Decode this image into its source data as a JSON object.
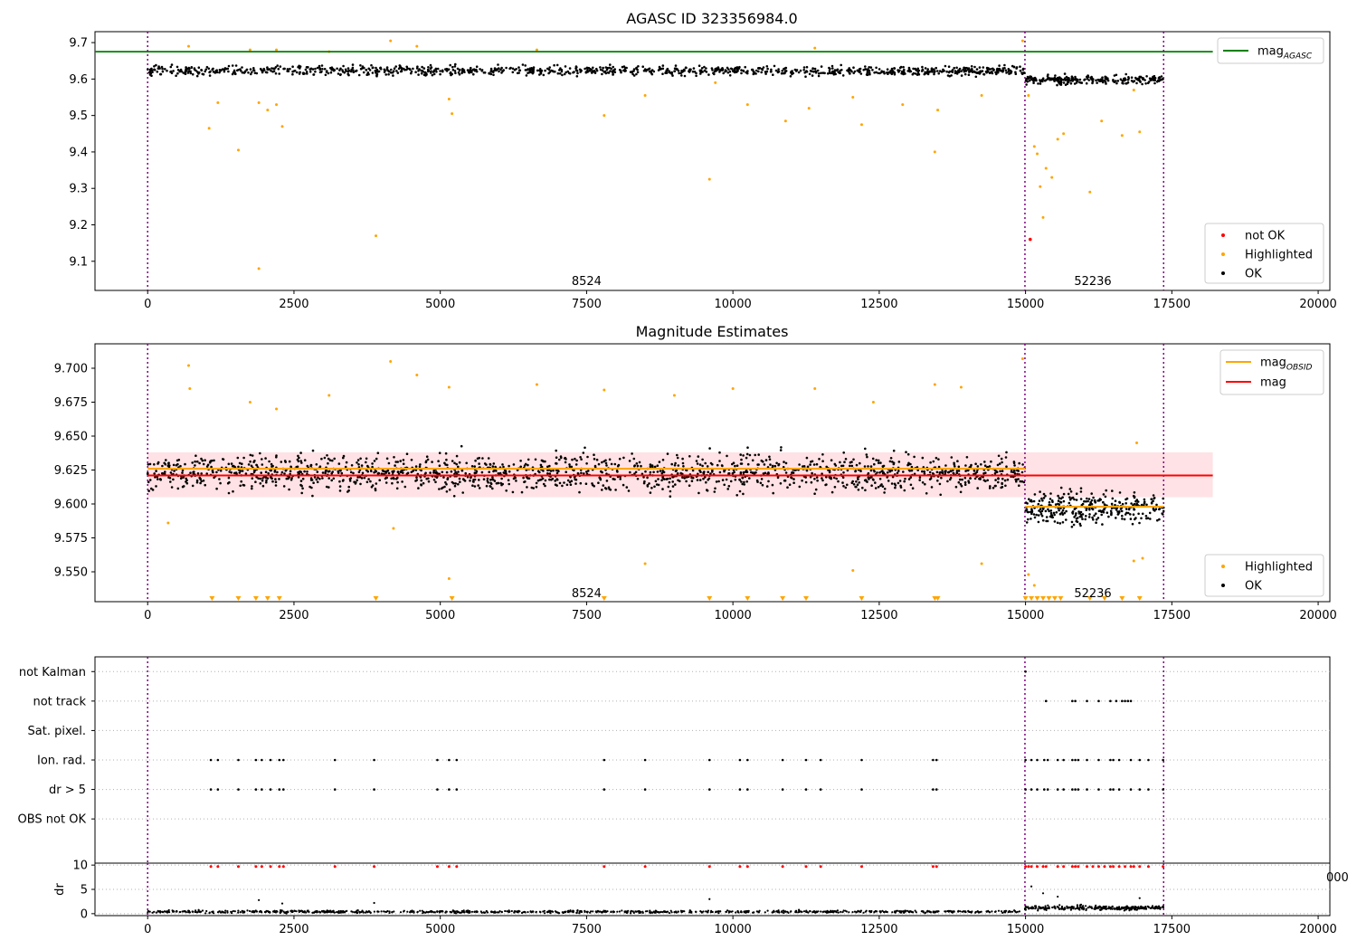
{
  "figure": {
    "title": "AGASC ID 323356984.0",
    "colors": {
      "ok": "#000000",
      "highlighted": "#ffa500",
      "not_ok": "#ff0000",
      "agasc_line": "#008000",
      "obsid_line": "#ffa500",
      "mag_line": "#ff0000",
      "band": "#ffd6da",
      "obs_boundary": "#800080",
      "flag_grid": "#b0b0b0"
    },
    "obs_boundaries": [
      0,
      14990,
      17360
    ],
    "obsid_labels": [
      {
        "text": "8524",
        "x": 7500
      },
      {
        "text": "52236",
        "x": 16150
      }
    ]
  },
  "chart_data": [
    {
      "panel": "top",
      "type": "scatter",
      "title": "",
      "xlim": [
        -900,
        20200
      ],
      "ylim": [
        9.02,
        9.73
      ],
      "xticks": [
        0,
        2500,
        5000,
        7500,
        10000,
        12500,
        15000,
        17500,
        20000
      ],
      "xticklabels": [
        "0",
        "2500",
        "5000",
        "7500",
        "10000",
        "12500",
        "15000",
        "17500",
        "20000"
      ],
      "yticks": [
        9.1,
        9.2,
        9.3,
        9.4,
        9.5,
        9.6,
        9.7
      ],
      "yticklabels": [
        "9.1",
        "9.2",
        "9.3",
        "9.4",
        "9.5",
        "9.6",
        "9.7"
      ],
      "obsid_label_y": 9.045,
      "line_legend": [
        {
          "name": "mag",
          "sub": "AGASC",
          "color": "#008000"
        }
      ],
      "point_legend": [
        {
          "name": "not OK",
          "color": "#ff0000"
        },
        {
          "name": "Highlighted",
          "color": "#ffa500"
        },
        {
          "name": "OK",
          "color": "#000000"
        }
      ],
      "hlines": [
        {
          "y": 9.675,
          "x0": -900,
          "x1": 18200,
          "color": "#008000"
        }
      ],
      "ok_bands": [
        {
          "x0": 0,
          "x1": 14990,
          "center": 9.623,
          "spread": 0.013,
          "n": 1100
        },
        {
          "x0": 14990,
          "x1": 17360,
          "center": 9.598,
          "spread": 0.011,
          "n": 240
        }
      ],
      "highlighted_points": [
        [
          700,
          9.69
        ],
        [
          1050,
          9.465
        ],
        [
          1200,
          9.535
        ],
        [
          1550,
          9.405
        ],
        [
          1750,
          9.68
        ],
        [
          1900,
          9.08
        ],
        [
          1900,
          9.535
        ],
        [
          2050,
          9.515
        ],
        [
          2200,
          9.53
        ],
        [
          2300,
          9.47
        ],
        [
          2200,
          9.68
        ],
        [
          3100,
          9.675
        ],
        [
          3900,
          9.17
        ],
        [
          4150,
          9.705
        ],
        [
          4600,
          9.69
        ],
        [
          5150,
          9.545
        ],
        [
          5200,
          9.505
        ],
        [
          6650,
          9.68
        ],
        [
          7800,
          9.5
        ],
        [
          8500,
          9.555
        ],
        [
          9600,
          9.325
        ],
        [
          9700,
          9.59
        ],
        [
          10250,
          9.53
        ],
        [
          10900,
          9.485
        ],
        [
          11300,
          9.52
        ],
        [
          11400,
          9.685
        ],
        [
          12050,
          9.55
        ],
        [
          12200,
          9.475
        ],
        [
          12900,
          9.53
        ],
        [
          13450,
          9.4
        ],
        [
          13500,
          9.515
        ],
        [
          14250,
          9.555
        ],
        [
          14950,
          9.705
        ],
        [
          15050,
          9.555
        ],
        [
          15150,
          9.415
        ],
        [
          15200,
          9.395
        ],
        [
          15250,
          9.305
        ],
        [
          15300,
          9.22
        ],
        [
          15350,
          9.355
        ],
        [
          15450,
          9.33
        ],
        [
          15550,
          9.435
        ],
        [
          15650,
          9.45
        ],
        [
          16100,
          9.29
        ],
        [
          16300,
          9.485
        ],
        [
          16650,
          9.445
        ],
        [
          16850,
          9.57
        ],
        [
          16950,
          9.455
        ]
      ],
      "not_ok_points": [
        [
          15080,
          9.16
        ]
      ]
    },
    {
      "panel": "middle",
      "type": "scatter",
      "title": "Magnitude Estimates",
      "xlim": [
        -900,
        20200
      ],
      "ylim": [
        9.528,
        9.718
      ],
      "xticks": [
        0,
        2500,
        5000,
        7500,
        10000,
        12500,
        15000,
        17500,
        20000
      ],
      "xticklabels": [
        "0",
        "2500",
        "5000",
        "7500",
        "10000",
        "12500",
        "15000",
        "17500",
        "20000"
      ],
      "yticks": [
        9.55,
        9.575,
        9.6,
        9.625,
        9.65,
        9.675,
        9.7
      ],
      "yticklabels": [
        "9.550",
        "9.575",
        "9.600",
        "9.625",
        "9.650",
        "9.675",
        "9.700"
      ],
      "obsid_label_y": 9.534,
      "line_legend": [
        {
          "name": "mag",
          "sub": "OBSID",
          "color": "#ffa500"
        },
        {
          "name": "mag",
          "sub": "",
          "color": "#ff0000"
        }
      ],
      "point_legend": [
        {
          "name": "Highlighted",
          "color": "#ffa500"
        },
        {
          "name": "OK",
          "color": "#000000"
        }
      ],
      "band": {
        "x0": 0,
        "x1": 18200,
        "y0": 9.605,
        "y1": 9.638
      },
      "hlines": [
        {
          "y": 9.621,
          "x0": 0,
          "x1": 18200,
          "color": "#ff0000"
        },
        {
          "y": 9.626,
          "x0": 0,
          "x1": 14990,
          "color": "#ffa500"
        },
        {
          "y": 9.598,
          "x0": 14990,
          "x1": 17360,
          "color": "#ffa500"
        }
      ],
      "ok_bands": [
        {
          "x0": 0,
          "x1": 14990,
          "center": 9.623,
          "spread": 0.013,
          "n": 1600
        },
        {
          "x0": 14990,
          "x1": 17360,
          "center": 9.597,
          "spread": 0.012,
          "n": 320
        }
      ],
      "highlighted_points": [
        [
          700,
          9.702
        ],
        [
          720,
          9.685
        ],
        [
          1750,
          9.675
        ],
        [
          2200,
          9.67
        ],
        [
          3100,
          9.68
        ],
        [
          4150,
          9.705
        ],
        [
          4600,
          9.695
        ],
        [
          5150,
          9.686
        ],
        [
          6650,
          9.688
        ],
        [
          7800,
          9.684
        ],
        [
          9000,
          9.68
        ],
        [
          10000,
          9.685
        ],
        [
          11400,
          9.685
        ],
        [
          12400,
          9.675
        ],
        [
          13450,
          9.688
        ],
        [
          13900,
          9.686
        ],
        [
          14950,
          9.707
        ],
        [
          5150,
          9.545
        ],
        [
          8500,
          9.556
        ],
        [
          12050,
          9.551
        ],
        [
          14250,
          9.556
        ],
        [
          350,
          9.586
        ],
        [
          4200,
          9.582
        ],
        [
          15050,
          9.548
        ],
        [
          15150,
          9.54
        ],
        [
          16850,
          9.558
        ],
        [
          17000,
          9.56
        ],
        [
          16900,
          9.645
        ]
      ],
      "clipped_markers": [
        1100,
        1550,
        1850,
        2050,
        2250,
        3900,
        5200,
        7800,
        9600,
        10250,
        10850,
        11250,
        12200,
        13450,
        13500,
        15000,
        15100,
        15200,
        15300,
        15400,
        15500,
        15600,
        16100,
        16350,
        16650,
        16950
      ]
    },
    {
      "panel": "flags",
      "type": "scatter",
      "xlim": [
        -900,
        20200
      ],
      "ylim": [
        -0.5,
        6.5
      ],
      "yticklabels": [
        "not Kalman",
        "not track",
        "Sat. pixel.",
        "Ion. rad.",
        "dr > 5",
        "OBS not OK"
      ],
      "rows": {
        "not_track": [
          15350,
          15800,
          15850,
          16050,
          16250,
          16450,
          16550,
          16650,
          16700,
          16750,
          16800
        ],
        "ion_rad": [
          1080,
          1200,
          1550,
          1850,
          1950,
          2100,
          2250,
          2320,
          3200,
          3870,
          4950,
          5150,
          5280,
          7800,
          8500,
          9600,
          10120,
          10250,
          10850,
          11250,
          11500,
          12200,
          13420,
          13480,
          15000,
          15100,
          15200,
          15320,
          15380,
          15550,
          15650,
          15800,
          15850,
          15900,
          16050,
          16250,
          16450,
          16500,
          16600,
          16800,
          16950,
          17100,
          17350
        ],
        "dr_gt_5": [
          1080,
          1200,
          1550,
          1850,
          1950,
          2100,
          2250,
          2320,
          3200,
          3870,
          4950,
          5150,
          5280,
          7800,
          8500,
          9600,
          10120,
          10250,
          10850,
          11250,
          11500,
          12200,
          13420,
          13480,
          15000,
          15100,
          15200,
          15320,
          15380,
          15550,
          15650,
          15800,
          15850,
          15900,
          16050,
          16250,
          16450,
          16500,
          16600,
          16800,
          16950,
          17100,
          17350
        ],
        "not_kalman": [
          15000
        ]
      }
    },
    {
      "panel": "dr",
      "type": "scatter",
      "ylabel": "dr",
      "xlim": [
        -900,
        20200
      ],
      "ylim": [
        -0.4,
        10.4
      ],
      "xticks": [
        0,
        2500,
        5000,
        7500,
        10000,
        12500,
        15000,
        17500,
        20000
      ],
      "xticklabels": [
        "0",
        "2500",
        "5000",
        "7500",
        "10000",
        "12500",
        "15000",
        "17500",
        "20000"
      ],
      "yticks": [
        0,
        5,
        10
      ],
      "yticklabels": [
        "0",
        "5",
        "10"
      ],
      "overflow_label": "000",
      "ok_bands": [
        {
          "x0": 0,
          "x1": 14990,
          "center": 0.4,
          "spread": 0.25,
          "n": 900
        },
        {
          "x0": 14990,
          "x1": 17360,
          "center": 1.2,
          "spread": 0.45,
          "n": 260
        }
      ],
      "clipped_red": [
        1080,
        1200,
        1550,
        1850,
        1950,
        2100,
        2250,
        2320,
        3200,
        3870,
        4950,
        5150,
        5280,
        7800,
        8500,
        9600,
        10120,
        10250,
        10850,
        11250,
        11500,
        12200,
        13420,
        13480,
        15000,
        15050,
        15100,
        15200,
        15300,
        15350,
        15550,
        15650,
        15800,
        15850,
        15900,
        16050,
        16150,
        16250,
        16350,
        16450,
        16500,
        16600,
        16700,
        16800,
        16850,
        16950,
        17100,
        17350
      ],
      "extra_points": [
        [
          1900,
          2.8
        ],
        [
          2300,
          2.1
        ],
        [
          3870,
          2.2
        ],
        [
          9600,
          3.0
        ],
        [
          16950,
          3.2
        ],
        [
          15100,
          5.6
        ],
        [
          15300,
          4.2
        ],
        [
          15550,
          3.5
        ]
      ]
    }
  ]
}
